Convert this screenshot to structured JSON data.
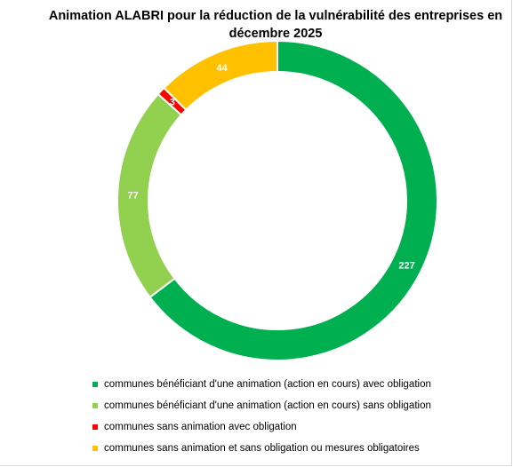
{
  "chart_data": {
    "type": "pie",
    "title": "Animation ALABRI pour la réduction de la vulnérabilité des entreprises en décembre 2025",
    "series": [
      {
        "name": "communes bénéficiant d'une animation (action en cours) avec obligation",
        "value": 227,
        "label": "227",
        "color": "#00b050"
      },
      {
        "name": "communes bénéficiant d'une animation (action en cours) sans obligation",
        "value": 77,
        "label": "77",
        "color": "#92d050"
      },
      {
        "name": "communes sans animation avec obligation",
        "value": 3,
        "label": "3",
        "color": "#ff0000"
      },
      {
        "name": "communes sans animation et sans obligation ou mesures obligatoires",
        "value": 44,
        "label": "44",
        "color": "#ffc000"
      }
    ],
    "legend_position": "bottom"
  }
}
